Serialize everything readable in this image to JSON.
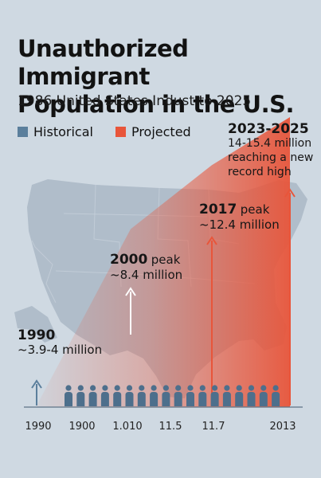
{
  "header": {
    "title_line1": "Unauthorized Immigrant",
    "title_line2": "Population in the U.S.",
    "subtitle": "1986 United States Indust to 2025"
  },
  "legend": [
    {
      "label": "Historical",
      "color": "#5b7f9c"
    },
    {
      "label": "Projected",
      "color": "#e8553a"
    }
  ],
  "annotations": {
    "a1990": {
      "year": "1990",
      "text": "~3.9-4 million"
    },
    "a2000": {
      "year": "2000",
      "peak": "peak",
      "text": "~8.4 million"
    },
    "a2017": {
      "year": "2017",
      "peak": "peak",
      "text": "~12.4 million"
    },
    "a2023": {
      "year": "2023-2025",
      "line1": "14-15.4 million",
      "line2": "reaching a new",
      "line3": "record high"
    }
  },
  "chart_data": {
    "type": "area",
    "title": "Unauthorized Immigrant Population in the U.S.",
    "subtitle": "1986 United States Indust to 2025",
    "x_tick_labels": [
      "1990",
      "1900",
      "1.010",
      "11.5",
      "11.7",
      "2013"
    ],
    "series": [
      {
        "name": "Historical",
        "color": "#5b7f9c"
      },
      {
        "name": "Projected",
        "color": "#e8553a",
        "x": [
          1990,
          2000,
          2017,
          2025
        ],
        "values": [
          3.9,
          8.4,
          12.4,
          15.4
        ]
      }
    ],
    "unit": "million",
    "ylim": [
      0,
      16
    ],
    "markers": [
      {
        "label": "1990",
        "value": 3.9
      },
      {
        "label": "2000",
        "value": 8.4
      },
      {
        "label": "2017",
        "value": 12.4
      },
      {
        "label": "2023-2025",
        "value": 15.4
      }
    ],
    "legend_position": "top-left",
    "people_icons": 18
  }
}
